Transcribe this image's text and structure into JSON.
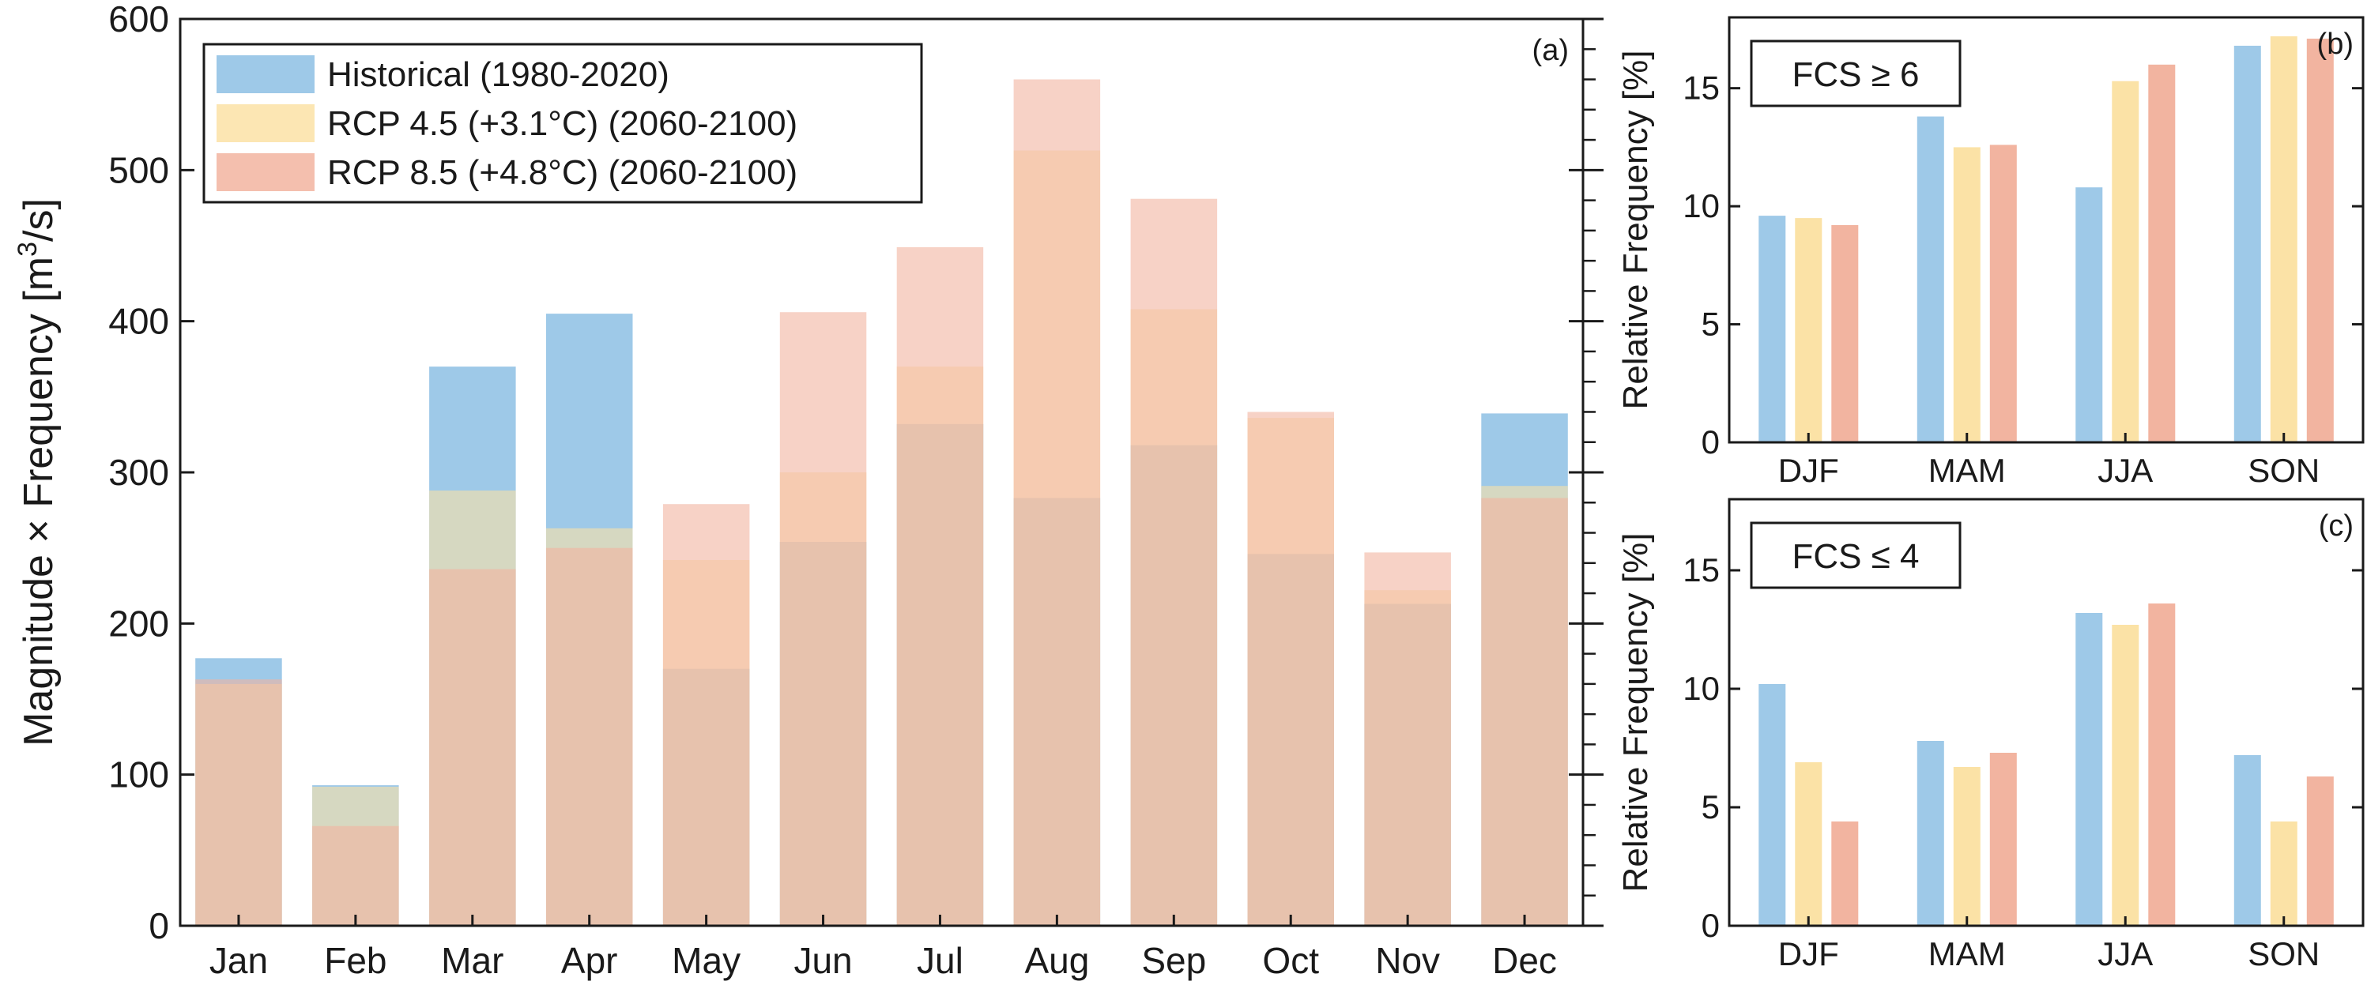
{
  "colors": {
    "historical": "#9ec9e8",
    "rcp45": "#fbe2a6",
    "rcp85": "#f2b4a0",
    "axis": "#1a1a1a"
  },
  "chart_data": [
    {
      "panel": "(a)",
      "type": "bar",
      "categories": [
        "Jan",
        "Feb",
        "Mar",
        "Apr",
        "May",
        "Jun",
        "Jul",
        "Aug",
        "Sep",
        "Oct",
        "Nov",
        "Dec"
      ],
      "series": [
        {
          "name": "Historical (1980-2020)",
          "values": [
            177,
            93,
            370,
            405,
            170,
            254,
            332,
            283,
            318,
            246,
            213,
            339
          ]
        },
        {
          "name": "RCP 4.5 (+3.1°C) (2060-2100)",
          "values": [
            160,
            92,
            288,
            263,
            242,
            300,
            370,
            513,
            408,
            336,
            222,
            291
          ]
        },
        {
          "name": "RCP 8.5 (+4.8°C) (2060-2100)",
          "values": [
            163,
            66,
            236,
            250,
            279,
            406,
            449,
            560,
            481,
            340,
            247,
            283
          ]
        }
      ],
      "ylabel_main": "Magnitude × Frequency [m",
      "ylabel_sup": "3",
      "ylabel_tail": "/s]",
      "ylim": [
        0,
        600
      ],
      "yticks": [
        0,
        100,
        200,
        300,
        400,
        500,
        600
      ],
      "legend_position": "top-left",
      "bar_style": "overlaid, semi-transparent"
    },
    {
      "panel": "(b)",
      "type": "bar",
      "box_label": "FCS ≥ 6",
      "categories": [
        "DJF",
        "MAM",
        "JJA",
        "SON"
      ],
      "series": [
        {
          "name": "Historical (1980-2020)",
          "values": [
            9.6,
            13.8,
            10.8,
            16.8
          ]
        },
        {
          "name": "RCP 4.5 (+3.1°C) (2060-2100)",
          "values": [
            9.5,
            12.5,
            15.3,
            17.2
          ]
        },
        {
          "name": "RCP 8.5 (+4.8°C) (2060-2100)",
          "values": [
            9.2,
            12.6,
            16.0,
            17.1
          ]
        }
      ],
      "ylabel": "Relative Frequency [%]",
      "ylim": [
        0,
        18
      ],
      "yticks": [
        0,
        5,
        10,
        15
      ]
    },
    {
      "panel": "(c)",
      "type": "bar",
      "box_label": "FCS ≤ 4",
      "categories": [
        "DJF",
        "MAM",
        "JJA",
        "SON"
      ],
      "series": [
        {
          "name": "Historical (1980-2020)",
          "values": [
            10.2,
            7.8,
            13.2,
            7.2
          ]
        },
        {
          "name": "RCP 4.5 (+3.1°C) (2060-2100)",
          "values": [
            6.9,
            6.7,
            12.7,
            4.4
          ]
        },
        {
          "name": "RCP 8.5 (+4.8°C) (2060-2100)",
          "values": [
            4.4,
            7.3,
            13.6,
            6.3
          ]
        }
      ],
      "ylabel": "Relative Frequency [%]",
      "ylim": [
        0,
        18
      ],
      "yticks": [
        0,
        5,
        10,
        15
      ]
    }
  ]
}
